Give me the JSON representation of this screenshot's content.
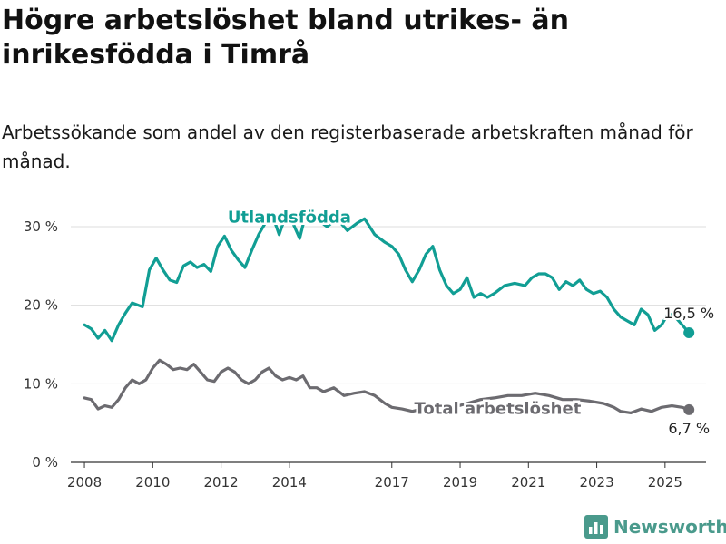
{
  "title": "Högre arbetslöshet bland utrikes- än inrikesfödda i Timrå",
  "subtitle": "Arbetssökande som andel av den registerbaserade arbetskraften månad för månad.",
  "brand": {
    "name": "Newsworthy",
    "color": "#4a9a8c",
    "icon": "bar-chart-logo-icon"
  },
  "colors": {
    "foreign": "#119e94",
    "total": "#6c6b70",
    "grid": "#dddddd",
    "axis": "#333333"
  },
  "chart_data": {
    "type": "line",
    "x_unit": "year",
    "xlim": [
      2007.6,
      2026.2
    ],
    "ylim": [
      0,
      30
    ],
    "ytick_values": [
      0,
      10,
      20,
      30
    ],
    "ytick_labels": [
      "0 %",
      "10 %",
      "20 %",
      "30 %"
    ],
    "xtick_values": [
      2008,
      2010,
      2012,
      2014,
      2017,
      2019,
      2021,
      2023,
      2025
    ],
    "xtick_labels": [
      "2008",
      "2010",
      "2012",
      "2014",
      "2017",
      "2019",
      "2021",
      "2023",
      "2025"
    ],
    "grid": true,
    "series": [
      {
        "name": "Utlandsfödda",
        "color": "#119e94",
        "end_label": "16,5 %",
        "points": [
          [
            2008.0,
            17.5
          ],
          [
            2008.2,
            17.0
          ],
          [
            2008.4,
            15.8
          ],
          [
            2008.6,
            16.8
          ],
          [
            2008.8,
            15.5
          ],
          [
            2009.0,
            17.5
          ],
          [
            2009.2,
            19.0
          ],
          [
            2009.4,
            20.3
          ],
          [
            2009.7,
            19.8
          ],
          [
            2009.9,
            24.5
          ],
          [
            2010.1,
            26.0
          ],
          [
            2010.3,
            24.5
          ],
          [
            2010.5,
            23.2
          ],
          [
            2010.7,
            22.9
          ],
          [
            2010.9,
            25.0
          ],
          [
            2011.1,
            25.5
          ],
          [
            2011.3,
            24.8
          ],
          [
            2011.5,
            25.2
          ],
          [
            2011.7,
            24.3
          ],
          [
            2011.9,
            27.5
          ],
          [
            2012.1,
            28.8
          ],
          [
            2012.3,
            27.0
          ],
          [
            2012.5,
            25.8
          ],
          [
            2012.7,
            24.8
          ],
          [
            2012.9,
            27.0
          ],
          [
            2013.1,
            29.0
          ],
          [
            2013.3,
            30.5
          ],
          [
            2013.5,
            31.5
          ],
          [
            2013.7,
            29.0
          ],
          [
            2013.9,
            31.5
          ],
          [
            2014.1,
            30.5
          ],
          [
            2014.3,
            28.5
          ],
          [
            2014.5,
            32.0
          ],
          [
            2014.8,
            31.0
          ],
          [
            2015.1,
            30.0
          ],
          [
            2015.4,
            31.0
          ],
          [
            2015.7,
            29.5
          ],
          [
            2016.0,
            30.5
          ],
          [
            2016.2,
            31.0
          ],
          [
            2016.5,
            29.0
          ],
          [
            2016.8,
            28.0
          ],
          [
            2017.0,
            27.5
          ],
          [
            2017.2,
            26.5
          ],
          [
            2017.4,
            24.5
          ],
          [
            2017.6,
            23.0
          ],
          [
            2017.8,
            24.5
          ],
          [
            2018.0,
            26.5
          ],
          [
            2018.2,
            27.5
          ],
          [
            2018.4,
            24.5
          ],
          [
            2018.6,
            22.5
          ],
          [
            2018.8,
            21.5
          ],
          [
            2019.0,
            22.0
          ],
          [
            2019.2,
            23.5
          ],
          [
            2019.4,
            21.0
          ],
          [
            2019.6,
            21.5
          ],
          [
            2019.8,
            21.0
          ],
          [
            2020.0,
            21.5
          ],
          [
            2020.3,
            22.5
          ],
          [
            2020.6,
            22.8
          ],
          [
            2020.9,
            22.5
          ],
          [
            2021.1,
            23.5
          ],
          [
            2021.3,
            24.0
          ],
          [
            2021.5,
            24.0
          ],
          [
            2021.7,
            23.5
          ],
          [
            2021.9,
            22.0
          ],
          [
            2022.1,
            23.0
          ],
          [
            2022.3,
            22.5
          ],
          [
            2022.5,
            23.2
          ],
          [
            2022.7,
            22.0
          ],
          [
            2022.9,
            21.5
          ],
          [
            2023.1,
            21.8
          ],
          [
            2023.3,
            21.0
          ],
          [
            2023.5,
            19.5
          ],
          [
            2023.7,
            18.5
          ],
          [
            2023.9,
            18.0
          ],
          [
            2024.1,
            17.5
          ],
          [
            2024.3,
            19.5
          ],
          [
            2024.5,
            18.8
          ],
          [
            2024.7,
            16.8
          ],
          [
            2024.9,
            17.5
          ],
          [
            2025.1,
            19.0
          ],
          [
            2025.3,
            18.5
          ],
          [
            2025.5,
            17.5
          ],
          [
            2025.7,
            16.5
          ]
        ]
      },
      {
        "name": "Total arbetslöshet",
        "color": "#6c6b70",
        "end_label": "6,7 %",
        "points": [
          [
            2008.0,
            8.2
          ],
          [
            2008.2,
            8.0
          ],
          [
            2008.4,
            6.8
          ],
          [
            2008.6,
            7.2
          ],
          [
            2008.8,
            7.0
          ],
          [
            2009.0,
            8.0
          ],
          [
            2009.2,
            9.5
          ],
          [
            2009.4,
            10.5
          ],
          [
            2009.6,
            10.0
          ],
          [
            2009.8,
            10.5
          ],
          [
            2010.0,
            12.0
          ],
          [
            2010.2,
            13.0
          ],
          [
            2010.4,
            12.5
          ],
          [
            2010.6,
            11.8
          ],
          [
            2010.8,
            12.0
          ],
          [
            2011.0,
            11.8
          ],
          [
            2011.2,
            12.5
          ],
          [
            2011.4,
            11.5
          ],
          [
            2011.6,
            10.5
          ],
          [
            2011.8,
            10.3
          ],
          [
            2012.0,
            11.5
          ],
          [
            2012.2,
            12.0
          ],
          [
            2012.4,
            11.5
          ],
          [
            2012.6,
            10.5
          ],
          [
            2012.8,
            10.0
          ],
          [
            2013.0,
            10.5
          ],
          [
            2013.2,
            11.5
          ],
          [
            2013.4,
            12.0
          ],
          [
            2013.6,
            11.0
          ],
          [
            2013.8,
            10.5
          ],
          [
            2014.0,
            10.8
          ],
          [
            2014.2,
            10.5
          ],
          [
            2014.4,
            11.0
          ],
          [
            2014.6,
            9.5
          ],
          [
            2014.8,
            9.5
          ],
          [
            2015.0,
            9.0
          ],
          [
            2015.3,
            9.5
          ],
          [
            2015.6,
            8.5
          ],
          [
            2015.9,
            8.8
          ],
          [
            2016.2,
            9.0
          ],
          [
            2016.5,
            8.5
          ],
          [
            2016.8,
            7.5
          ],
          [
            2017.0,
            7.0
          ],
          [
            2017.3,
            6.8
          ],
          [
            2017.6,
            6.5
          ],
          [
            2017.9,
            6.8
          ],
          [
            2018.2,
            6.5
          ],
          [
            2018.5,
            6.5
          ],
          [
            2018.8,
            7.0
          ],
          [
            2019.2,
            7.5
          ],
          [
            2019.6,
            8.0
          ],
          [
            2020.0,
            8.2
          ],
          [
            2020.4,
            8.5
          ],
          [
            2020.8,
            8.5
          ],
          [
            2021.2,
            8.8
          ],
          [
            2021.6,
            8.5
          ],
          [
            2022.0,
            8.0
          ],
          [
            2022.4,
            8.0
          ],
          [
            2022.8,
            7.8
          ],
          [
            2023.2,
            7.5
          ],
          [
            2023.5,
            7.0
          ],
          [
            2023.7,
            6.5
          ],
          [
            2024.0,
            6.3
          ],
          [
            2024.3,
            6.8
          ],
          [
            2024.6,
            6.5
          ],
          [
            2024.9,
            7.0
          ],
          [
            2025.2,
            7.2
          ],
          [
            2025.5,
            7.0
          ],
          [
            2025.7,
            6.7
          ]
        ]
      }
    ]
  }
}
